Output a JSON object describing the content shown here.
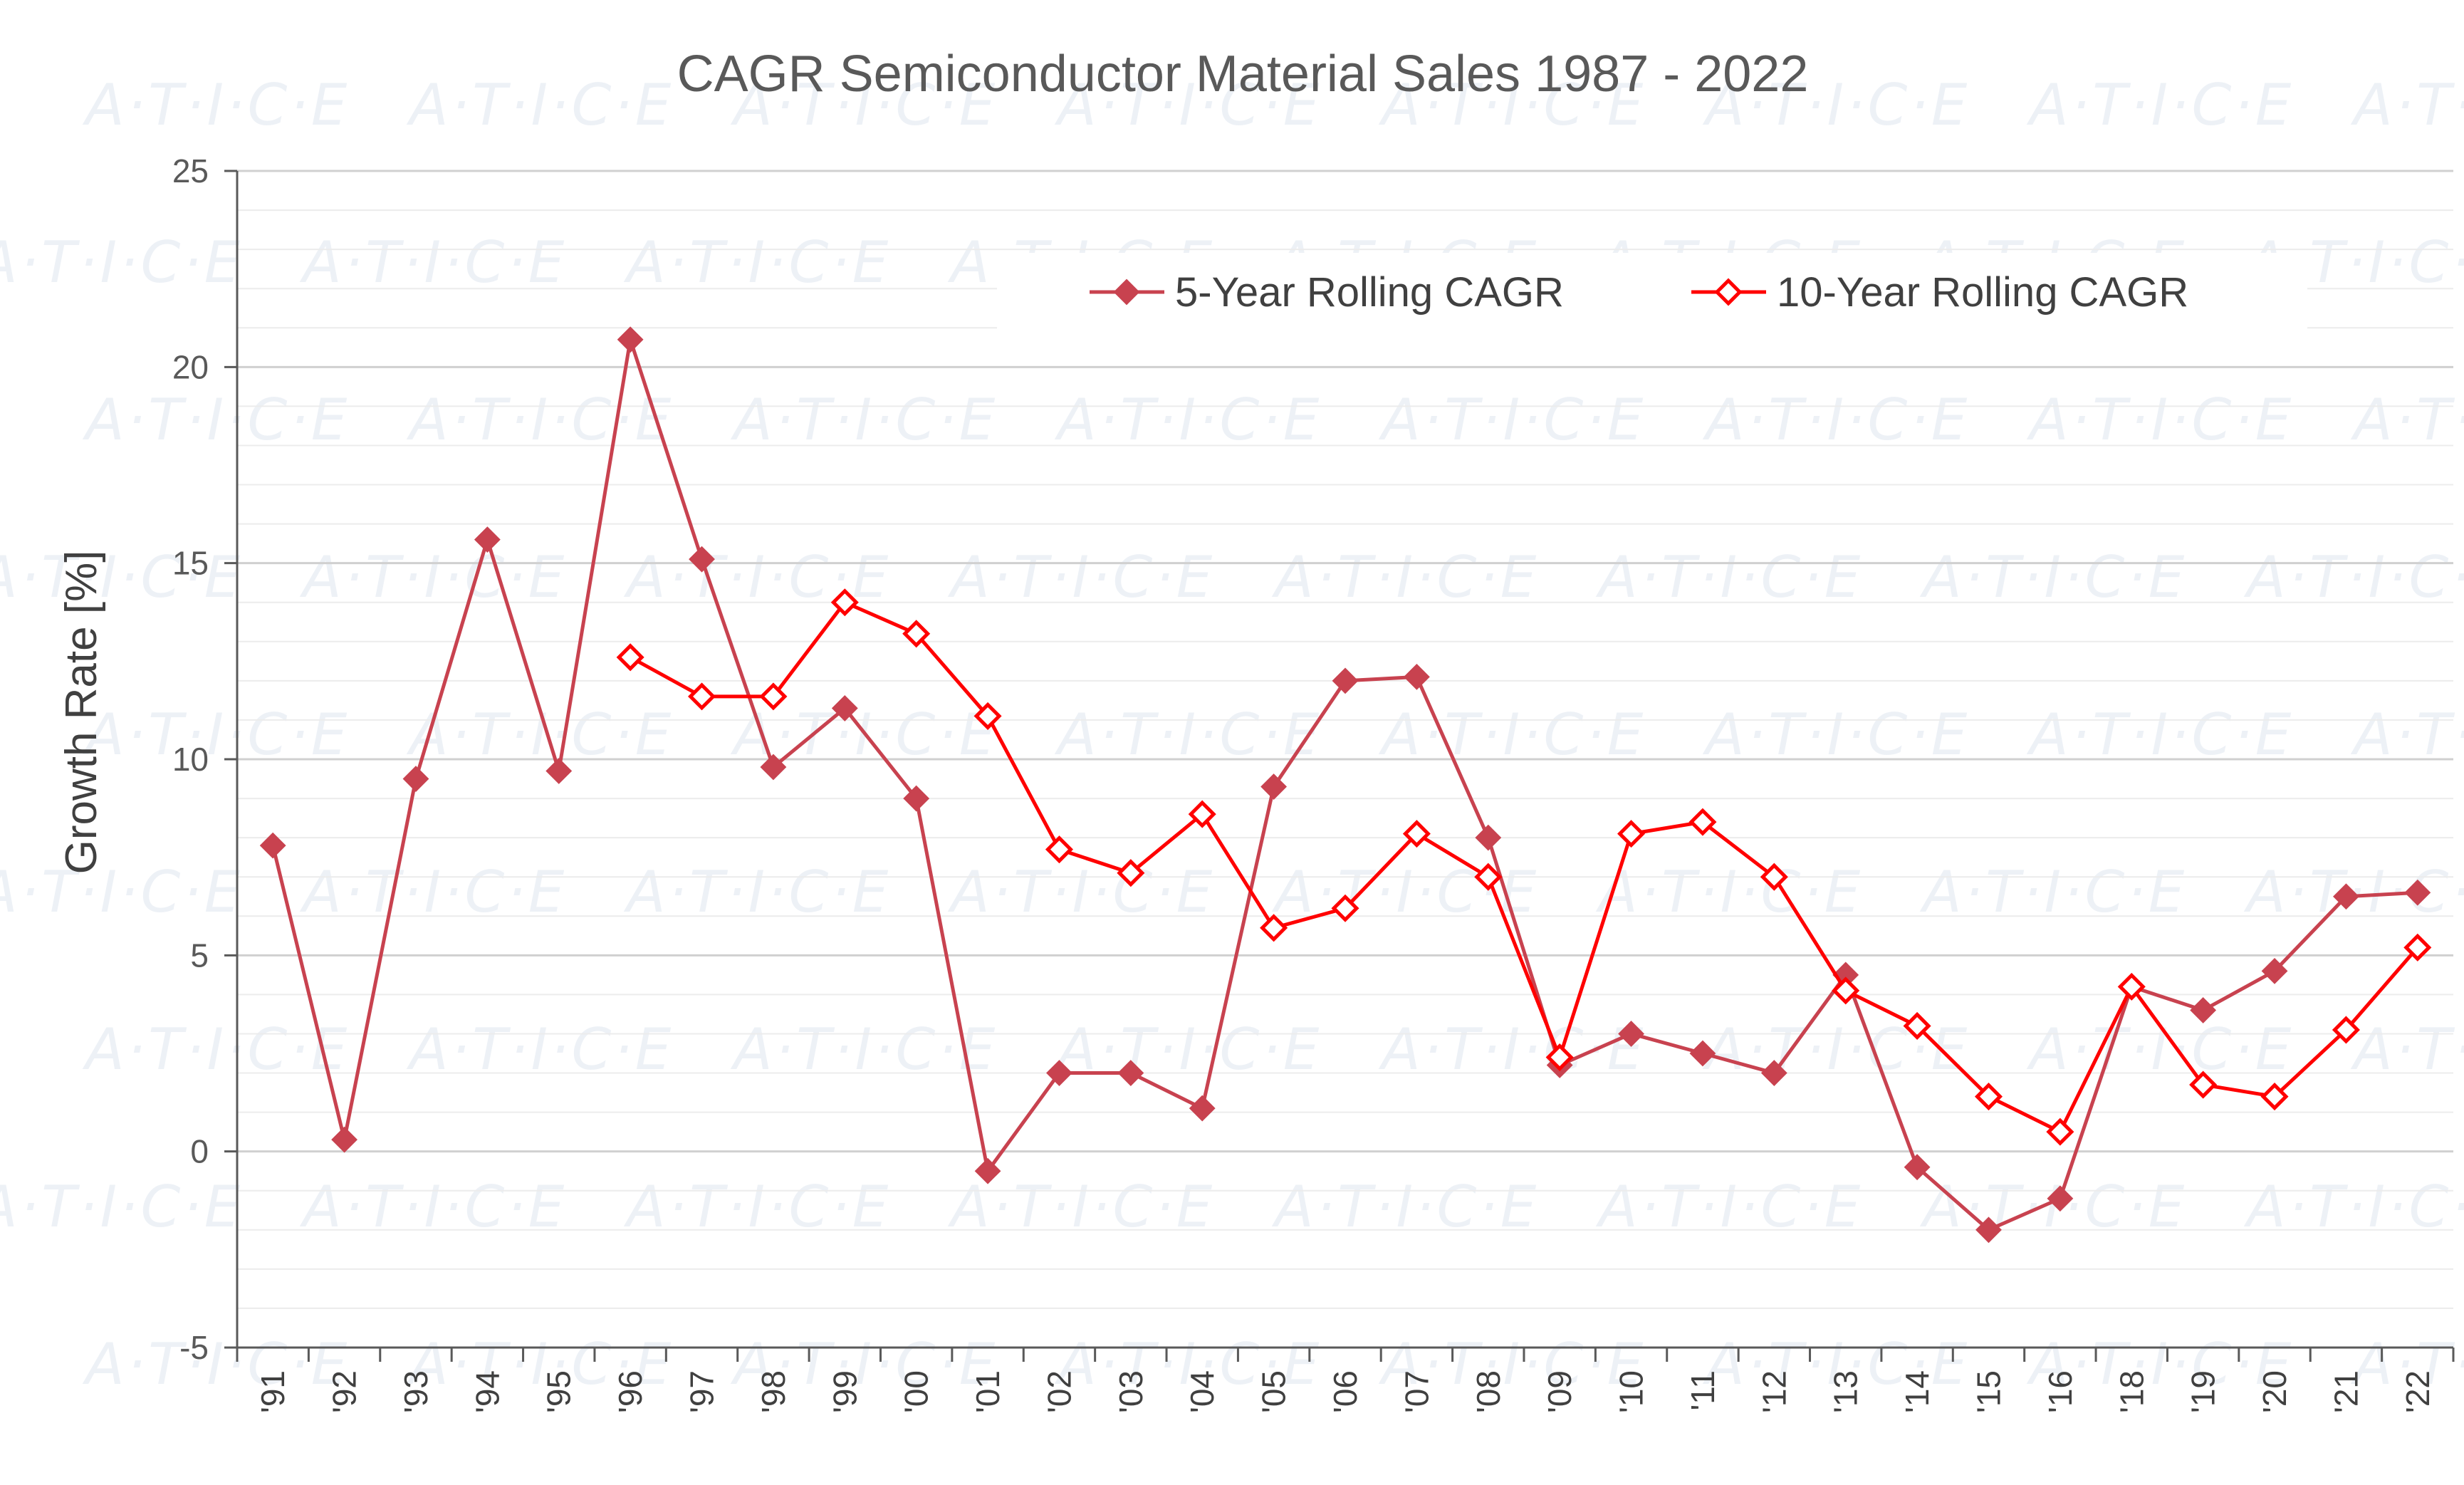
{
  "chart_data": {
    "type": "line",
    "title": "CAGR Semiconductor Material Sales 1987 - 2022",
    "ylabel": "Growth Rate [%]",
    "xlabel": "",
    "ylim": [
      -5,
      25
    ],
    "yticks": [
      -5,
      0,
      5,
      10,
      15,
      20,
      25
    ],
    "grid": true,
    "legend_position": "top-right",
    "watermark": "A·T·I·C·E",
    "categories": [
      "'91",
      "'92",
      "'93",
      "'94",
      "'95",
      "'96",
      "'97",
      "'98",
      "'99",
      "'00",
      "'01",
      "'02",
      "'03",
      "'04",
      "'05",
      "'06",
      "'07",
      "'08",
      "'09",
      "'10",
      "'11",
      "'12",
      "'13",
      "'14",
      "'15",
      "'16",
      "'18",
      "'19",
      "'20",
      "'21",
      "'22"
    ],
    "series": [
      {
        "name": "5-Year Rolling CAGR",
        "color": "#c8424f",
        "marker": "filled-diamond",
        "values": [
          7.8,
          0.3,
          9.5,
          15.6,
          9.7,
          20.7,
          15.1,
          9.8,
          11.3,
          9.0,
          -0.5,
          2.0,
          2.0,
          1.1,
          9.3,
          12.0,
          12.1,
          8.0,
          2.2,
          3.0,
          2.5,
          2.0,
          4.5,
          -0.4,
          -2.0,
          -1.2,
          4.2,
          3.6,
          4.6,
          6.5,
          6.6
        ]
      },
      {
        "name": "10-Year Rolling CAGR",
        "color": "#ff0000",
        "marker": "open-diamond",
        "values": [
          null,
          null,
          null,
          null,
          null,
          12.6,
          11.6,
          11.6,
          14.0,
          13.2,
          11.1,
          7.7,
          7.1,
          8.6,
          5.7,
          6.2,
          8.1,
          7.0,
          2.4,
          8.1,
          8.4,
          7.0,
          4.1,
          3.2,
          1.4,
          0.5,
          4.2,
          1.7,
          1.4,
          3.1,
          5.2
        ]
      }
    ]
  }
}
